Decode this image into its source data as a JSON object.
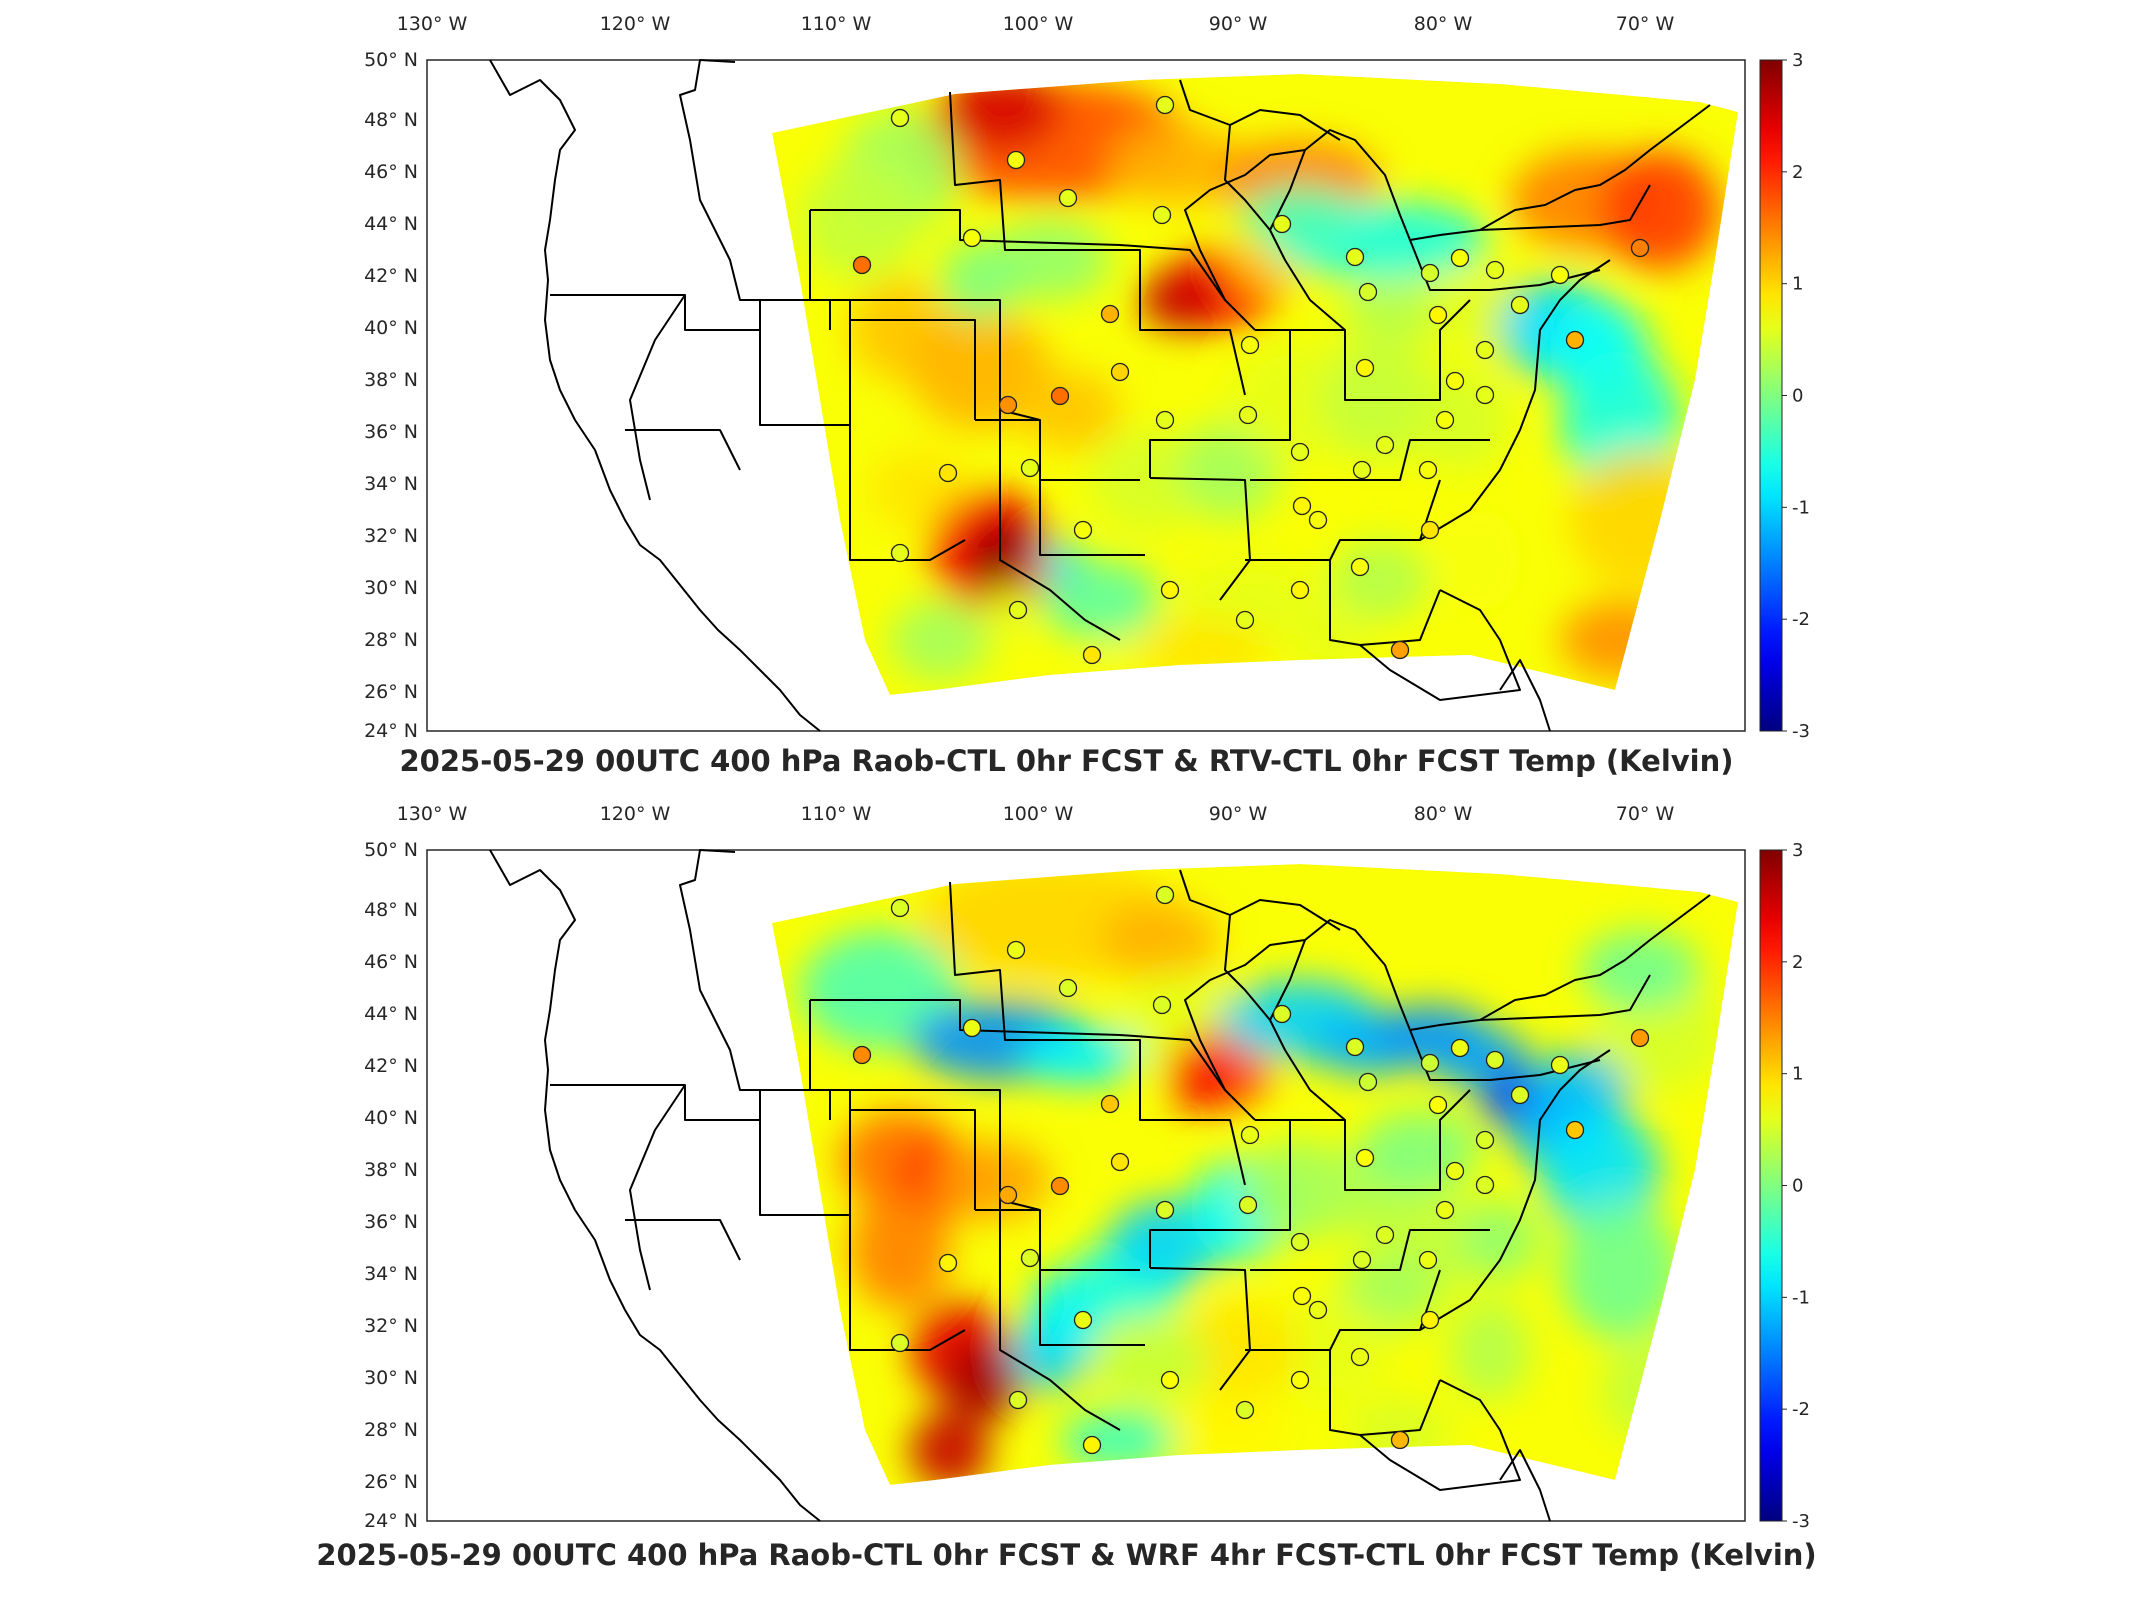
{
  "maps": [
    {
      "id": "top",
      "title": "2025-05-29 00UTC 400 hPa Raob-CTL 0hr FCST & RTV-CTL 0hr FCST Temp (Kelvin)",
      "lon_labels": [
        "130° W",
        "120° W",
        "110° W",
        "100° W",
        "90° W",
        "80° W",
        "70° W"
      ],
      "lat_labels": [
        "50° N",
        "48° N",
        "46° N",
        "44° N",
        "42° N",
        "40° N",
        "38° N",
        "36° N",
        "34° N",
        "32° N",
        "30° N",
        "28° N",
        "26° N",
        "24° N"
      ],
      "colorbar": {
        "min": -3,
        "max": 3,
        "ticks": [
          "3",
          "2",
          "1",
          "0",
          "-1",
          "-2",
          "-3"
        ],
        "colormap": "jet"
      }
    },
    {
      "id": "bottom",
      "title": "2025-05-29 00UTC 400 hPa Raob-CTL 0hr FCST & WRF 4hr FCST-CTL 0hr FCST Temp (Kelvin)",
      "lon_labels": [
        "130° W",
        "120° W",
        "110° W",
        "100° W",
        "90° W",
        "80° W",
        "70° W"
      ],
      "lat_labels": [
        "50° N",
        "48° N",
        "46° N",
        "44° N",
        "42° N",
        "40° N",
        "38° N",
        "36° N",
        "34° N",
        "32° N",
        "30° N",
        "28° N",
        "26° N",
        "24° N"
      ],
      "colorbar": {
        "min": -3,
        "max": 3,
        "ticks": [
          "3",
          "2",
          "1",
          "0",
          "-1",
          "-2",
          "-3"
        ],
        "colormap": "jet"
      }
    }
  ],
  "colors": {
    "jet_min": "#00008f",
    "jet_neutral": "#7fff7f",
    "jet_max": "#800000",
    "frame": "#262626"
  }
}
